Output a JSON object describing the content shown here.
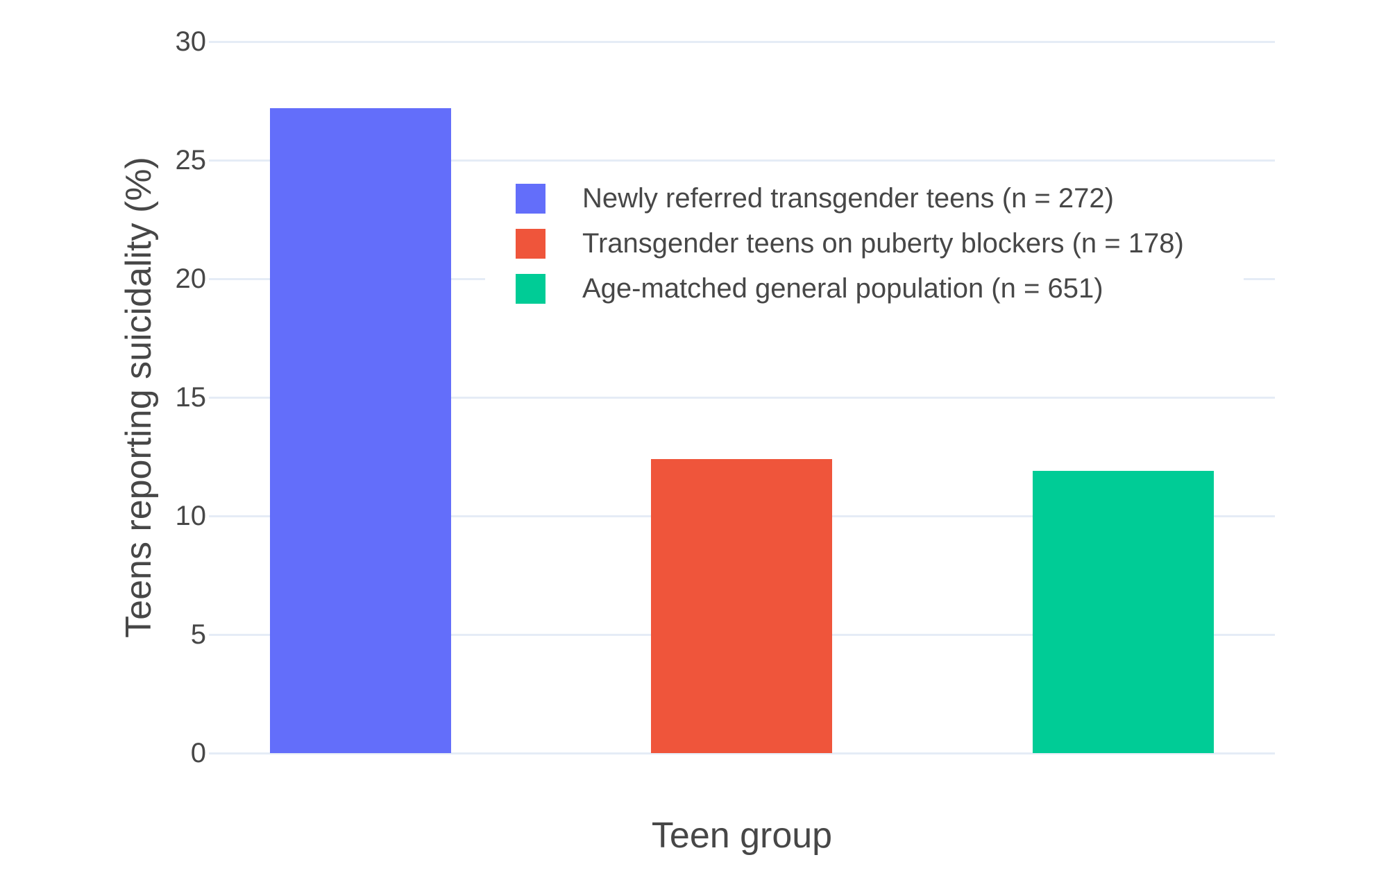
{
  "chart_data": {
    "type": "bar",
    "title": "",
    "xlabel": "Teen group",
    "ylabel": "Teens reporting suicidality (%)",
    "ylim": [
      0,
      30
    ],
    "yticks": [
      0,
      5,
      10,
      15,
      20,
      25,
      30
    ],
    "grid": "horizontal gridlines on, white background",
    "legend_position": "inside plot, upper area, white background",
    "categories": [
      "Newly referred transgender teens (n = 272)",
      "Transgender teens on puberty blockers (n = 178)",
      "Age-matched general population (n = 651)"
    ],
    "values": [
      27.2,
      12.4,
      11.9
    ],
    "colors": [
      "#636EFA",
      "#EF553B",
      "#00CC96"
    ]
  },
  "colors": {
    "gridline": "#E5ECF6",
    "text": "#474747",
    "background": "#FFFFFF"
  }
}
